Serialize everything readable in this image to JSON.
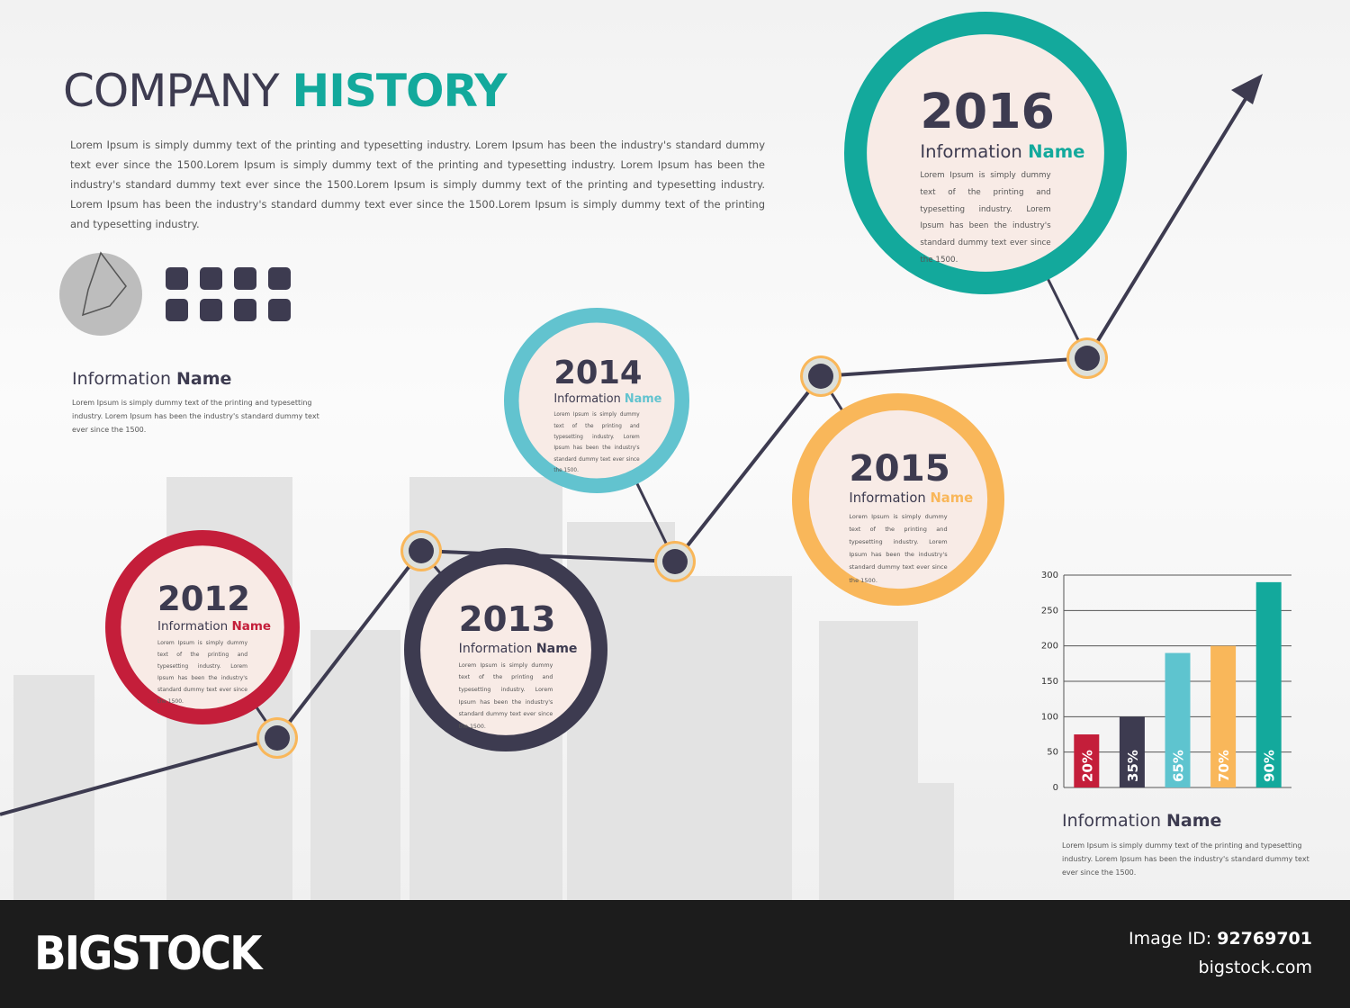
{
  "header": {
    "title_part1": "COMPANY",
    "title_part2": "HISTORY",
    "body": "Lorem Ipsum is simply dummy text of the printing and typesetting industry. Lorem Ipsum has been the industry's standard dummy text ever since the 1500.Lorem Ipsum is simply dummy text of the printing and typesetting industry. Lorem Ipsum has been the industry's standard dummy text ever since the 1500.Lorem Ipsum is simply dummy text of the printing and typesetting industry. Lorem Ipsum has been the industry's standard dummy text ever since the 1500.Lorem Ipsum is simply dummy text of the printing and typesetting industry."
  },
  "side_info": {
    "title_part1": "Information",
    "title_part2": "Name",
    "text": "Lorem Ipsum is simply dummy text of the printing and typesetting industry. Lorem Ipsum has been the industry's standard dummy text ever since the 1500."
  },
  "milestones": [
    {
      "year": "2012",
      "label_part1": "Information",
      "label_part2": "Name",
      "color": "#c41e3a",
      "text": "Lorem Ipsum is simply dummy text of the printing and typesetting industry. Lorem Ipsum has been the industry's standard dummy text ever since the 1500."
    },
    {
      "year": "2013",
      "label_part1": "Information",
      "label_part2": "Name",
      "color": "#3d3b50",
      "text": "Lorem Ipsum is simply dummy text of the printing and typesetting industry. Lorem Ipsum has been the industry's standard dummy text ever since the 1500."
    },
    {
      "year": "2014",
      "label_part1": "Information",
      "label_part2": "Name",
      "color": "#62c3cf",
      "text": "Lorem Ipsum is simply dummy text of the printing and typesetting industry. Lorem Ipsum has been the industry's standard dummy text ever since the 1500."
    },
    {
      "year": "2015",
      "label_part1": "Information",
      "label_part2": "Name",
      "color": "#f9b75a",
      "text": "Lorem Ipsum is simply dummy text of the printing and typesetting industry. Lorem Ipsum has been the industry's standard dummy text ever since the 1500."
    },
    {
      "year": "2016",
      "label_part1": "Information",
      "label_part2": "Name",
      "color": "#13a99c",
      "text": "Lorem Ipsum is simply dummy text of the printing and typesetting industry. Lorem Ipsum has been the industry's standard dummy text ever since the 1500."
    }
  ],
  "chart_data": {
    "type": "bar",
    "values": [
      75,
      100,
      190,
      200,
      290
    ],
    "annotations": [
      "20%",
      "35%",
      "65%",
      "70%",
      "90%"
    ],
    "colors": [
      "#c41e3a",
      "#3d3b50",
      "#5ec4cf",
      "#f9b75a",
      "#13a99c"
    ],
    "ylim": [
      0,
      300
    ],
    "yticks": [
      0,
      50,
      100,
      150,
      200,
      250,
      300
    ],
    "grid": true
  },
  "chart_info": {
    "title_part1": "Information",
    "title_part2": "Name",
    "text": "Lorem Ipsum is simply dummy text of the printing and typesetting industry. Lorem Ipsum has been the industry's standard dummy text ever since the 1500."
  },
  "footer": {
    "brand": "BIGSTOCK",
    "id_label": "Image ID:",
    "id_value": "92769701",
    "site": "bigstock.com"
  }
}
